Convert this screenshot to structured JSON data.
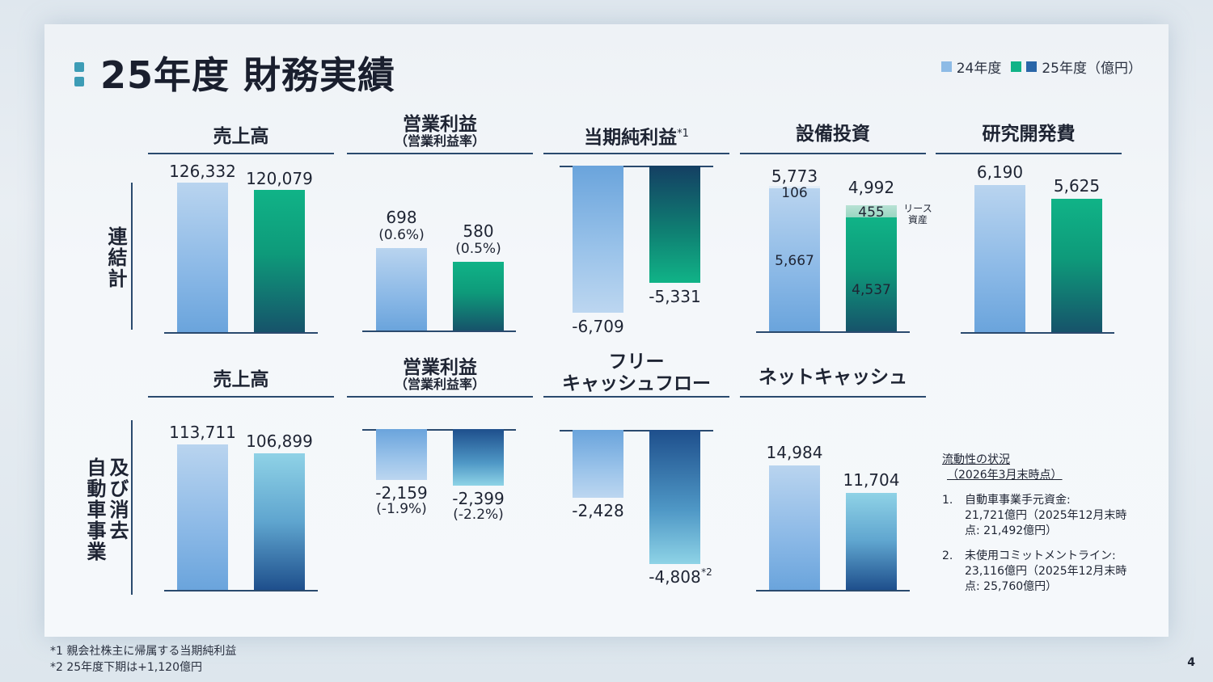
{
  "title": "25年度 財務実績",
  "legend": {
    "fy24": "24年度",
    "fy25": "25年度（億円）"
  },
  "colors": {
    "fy24": "#8dbbe6",
    "fy25_green": "#10b387",
    "fy25_blue": "#2a66a8"
  },
  "row_labels": {
    "consolidated": "連結計",
    "auto": "自動車事業\n及び消去"
  },
  "row_labels_auto_1": "自動車事業",
  "row_labels_auto_2": "及び消去",
  "columns": {
    "sales": "売上高",
    "op_income": "営業利益",
    "op_income_sub": "（営業利益率）",
    "net_income": "当期純利益",
    "net_income_sup": "*1",
    "capex": "設備投資",
    "rnd": "研究開発費",
    "fcf_1": "フリー",
    "fcf_2": "キャッシュフロー",
    "net_cash": "ネットキャッシュ"
  },
  "chart_data": [
    {
      "type": "bar",
      "section": "連結計",
      "title": "売上高",
      "categories": [
        "24年度",
        "25年度"
      ],
      "values": [
        126332,
        120079
      ],
      "labels": [
        "126,332",
        "120,079"
      ]
    },
    {
      "type": "bar",
      "section": "連結計",
      "title": "営業利益",
      "categories": [
        "24年度",
        "25年度"
      ],
      "values": [
        698,
        580
      ],
      "labels": [
        "698",
        "580"
      ],
      "margins": [
        "(0.6%)",
        "(0.5%)"
      ]
    },
    {
      "type": "bar",
      "section": "連結計",
      "title": "当期純利益",
      "categories": [
        "24年度",
        "25年度"
      ],
      "values": [
        -6709,
        -5331
      ],
      "labels": [
        "-6,709",
        "-5,331"
      ]
    },
    {
      "type": "bar",
      "section": "連結計",
      "title": "設備投資",
      "categories": [
        "24年度",
        "25年度"
      ],
      "values": [
        5773,
        4992
      ],
      "labels": [
        "5,773",
        "4,992"
      ],
      "stack": {
        "base": [
          5667,
          4537
        ],
        "base_labels": [
          "5,667",
          "4,537"
        ],
        "lease": [
          106,
          455
        ],
        "lease_labels": [
          "106",
          "455"
        ],
        "lease_name": "リース\n資産",
        "lease_name_1": "リース",
        "lease_name_2": "資産"
      }
    },
    {
      "type": "bar",
      "section": "連結計",
      "title": "研究開発費",
      "categories": [
        "24年度",
        "25年度"
      ],
      "values": [
        6190,
        5625
      ],
      "labels": [
        "6,190",
        "5,625"
      ]
    },
    {
      "type": "bar",
      "section": "自動車事業及び消去",
      "title": "売上高",
      "categories": [
        "24年度",
        "25年度"
      ],
      "values": [
        113711,
        106899
      ],
      "labels": [
        "113,711",
        "106,899"
      ]
    },
    {
      "type": "bar",
      "section": "自動車事業及び消去",
      "title": "営業利益",
      "categories": [
        "24年度",
        "25年度"
      ],
      "values": [
        -2159,
        -2399
      ],
      "labels": [
        "-2,159",
        "-2,399"
      ],
      "margins": [
        "(-1.9%)",
        "(-2.2%)"
      ]
    },
    {
      "type": "bar",
      "section": "自動車事業及び消去",
      "title": "フリーキャッシュフロー",
      "categories": [
        "24年度",
        "25年度"
      ],
      "values": [
        -2428,
        -4808
      ],
      "labels": [
        "-2,428",
        "-4,808"
      ],
      "note": "*2"
    },
    {
      "type": "bar",
      "section": "自動車事業及び消去",
      "title": "ネットキャッシュ",
      "categories": [
        "24年度",
        "25年度"
      ],
      "values": [
        14984,
        11704
      ],
      "labels": [
        "14,984",
        "11,704"
      ]
    }
  ],
  "liquidity": {
    "heading": "流動性の状況",
    "subheading": "（2026年3月末時点）",
    "items": [
      {
        "num": "1.",
        "text": "自動車事業手元資金:\n21,721億円（2025年12月末時点: 21,492億円）",
        "line1": "自動車事業手元資金:",
        "line2": "21,721億円（2025年12月末時",
        "line3": "点: 21,492億円）"
      },
      {
        "num": "2.",
        "text": "未使用コミットメントライン:\n23,116億円（2025年12月末時点: 25,760億円）",
        "line1": "未使用コミットメントライン:",
        "line2": "23,116億円（2025年12月末時",
        "line3": "点: 25,760億円）"
      }
    ]
  },
  "footnotes": [
    "*1 親会社株主に帰属する当期純利益",
    "*2 25年度下期は+1,120億円"
  ],
  "page_number": "4"
}
